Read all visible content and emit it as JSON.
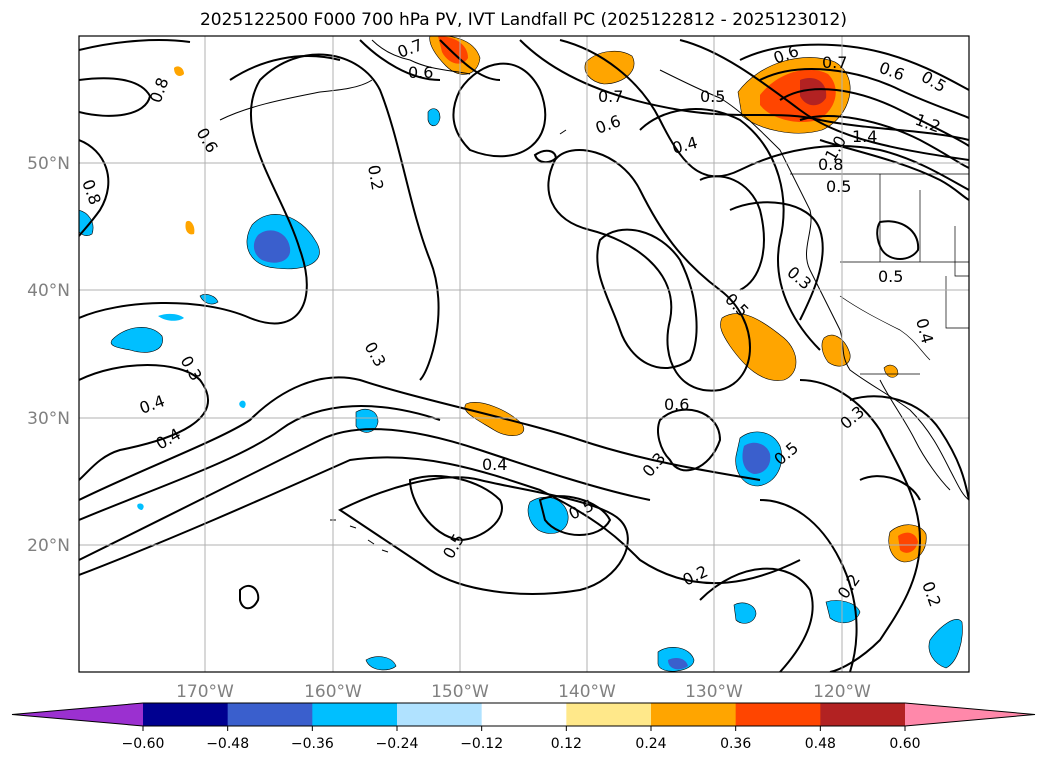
{
  "title": "2025122500 F000 700 hPa PV, IVT Landfall PC (2025122812 - 2025123012)",
  "lat_labels": [
    "50°N",
    "40°N",
    "30°N",
    "20°N"
  ],
  "lon_labels": [
    "170°W",
    "160°W",
    "150°W",
    "140°W",
    "130°W",
    "120°W"
  ],
  "colorbar": {
    "ticks": [
      "−0.60",
      "−0.48",
      "−0.36",
      "−0.24",
      "−0.12",
      "0.12",
      "0.24",
      "0.36",
      "0.48",
      "0.60"
    ],
    "colors": [
      "#9b30d0",
      "#000090",
      "#3a5fcd",
      "#00bfff",
      "#b0e2ff",
      "#ffffff",
      "#ffe88a",
      "#ffa500",
      "#ff4500",
      "#b22222",
      "#ff88aa"
    ]
  },
  "contour_labels": [
    "0.7",
    "0.8",
    "0.6",
    "0.8",
    "0.6",
    "0.2",
    "0.7",
    "0.5",
    "0.6",
    "0.7",
    "0.6",
    "0.5",
    "0.6",
    "0.4",
    "1.2",
    "1.4",
    "1.0",
    "0.8",
    "0.5",
    "0.3",
    "0.5",
    "0.5",
    "0.4",
    "0.3",
    "0.4",
    "0.4",
    "0.3",
    "0.6",
    "0.4",
    "0.5",
    "0.3",
    "0.3",
    "0.5",
    "0.5",
    "0.2",
    "0.2",
    "0.2"
  ],
  "map": {
    "region": "North Pacific, 10°N–60°N, 180°W–110°W",
    "fields": "700 hPa PV contours with shaded IVT landfall principal component"
  }
}
